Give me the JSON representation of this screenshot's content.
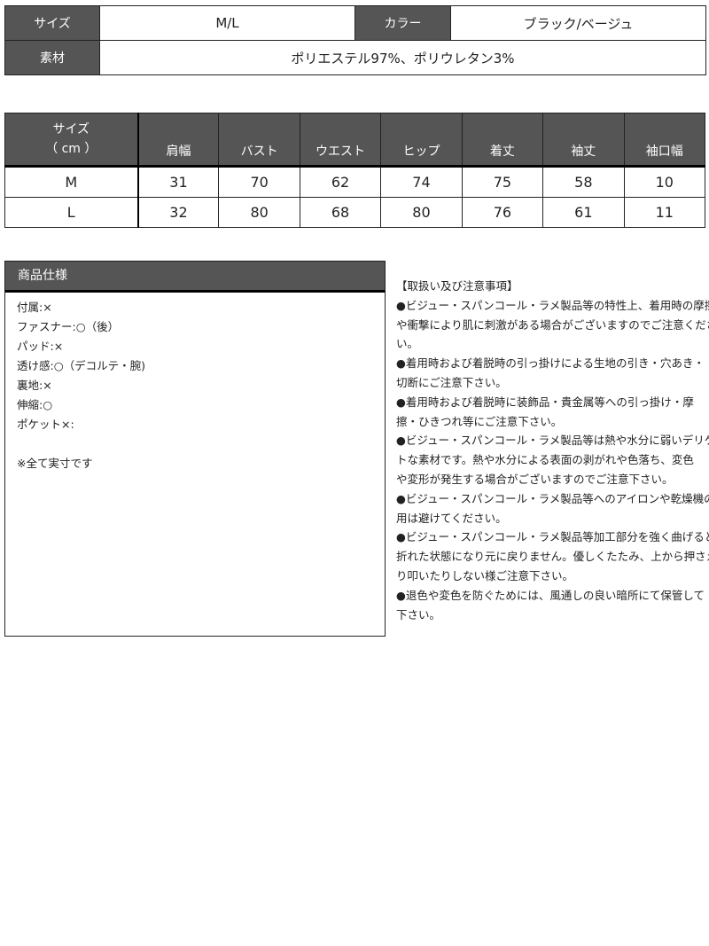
{
  "basic": {
    "size_label": "サイズ",
    "size_value": "M/L",
    "color_label": "カラー",
    "color_value": "ブラック/ベージュ",
    "material_label": "素材",
    "material_value": "ポリエステル97%、ポリウレタン3%"
  },
  "sizes": {
    "header_line1": "サイズ",
    "header_line2": "（ cm ）",
    "columns": [
      "肩幅",
      "バスト",
      "ウエスト",
      "ヒップ",
      "着丈",
      "袖丈",
      "袖口幅"
    ],
    "rows": [
      {
        "size": "M",
        "values": [
          "31",
          "70",
          "62",
          "74",
          "75",
          "58",
          "10"
        ]
      },
      {
        "size": "L",
        "values": [
          "32",
          "80",
          "68",
          "80",
          "76",
          "61",
          "11"
        ]
      }
    ]
  },
  "spec": {
    "title": "商品仕様",
    "lines": [
      "付属:×",
      "ファスナー:○（後）",
      "パッド:×",
      "透け感:○（デコルテ・腕)",
      "裏地:×",
      "伸縮:○",
      "ポケット×:",
      "",
      "※全て実寸です"
    ]
  },
  "notes": {
    "lines": [
      "【取扱い及び注意事項】",
      "●ビジュー・スパンコール・ラメ製品等の特性上、着用時の摩擦",
      "や衝撃により肌に刺激がある場合がございますのでご注意くださ",
      "い。",
      "●着用時および着脱時の引っ掛けによる生地の引き・穴あき・",
      "切断にご注意下さい。",
      "●着用時および着脱時に装飾品・貴金属等への引っ掛け・摩",
      "擦・ひきつれ等にご注意下さい。",
      "●ビジュー・スパンコール・ラメ製品等は熱や水分に弱いデリケー",
      "トな素材です。熱や水分による表面の剥がれや色落ち、変色",
      "や変形が発生する場合がございますのでご注意下さい。",
      "●ビジュー・スパンコール・ラメ製品等へのアイロンや乾燥機の使",
      "用は避けてください。",
      "●ビジュー・スパンコール・ラメ製品等加工部分を強く曲げると",
      "折れた状態になり元に戻りません。優しくたたみ、上から押さえた",
      "り叩いたりしない様ご注意下さい。",
      "●退色や変色を防ぐためには、風通しの良い暗所にて保管して",
      "下さい。"
    ]
  }
}
